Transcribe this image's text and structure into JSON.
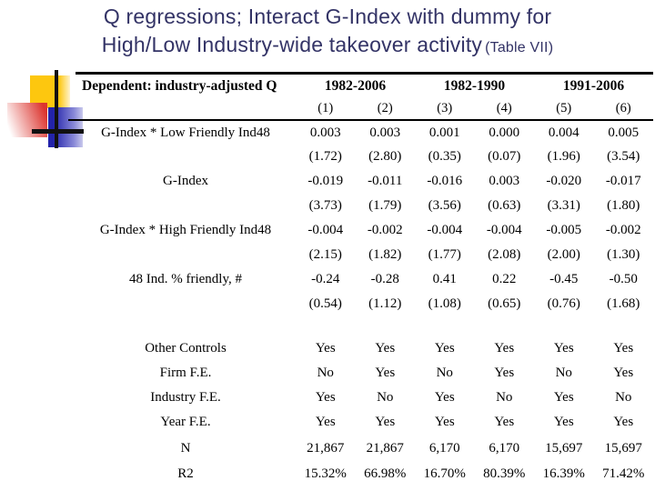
{
  "title": {
    "line1": "Q regressions; Interact G-Index with dummy for",
    "line2": "High/Low Industry-wide takeover activity",
    "suffix": "(Table VII)",
    "color": "#333366"
  },
  "table": {
    "dependent_label": "Dependent: industry-adjusted Q",
    "period_headers": [
      "1982-2006",
      "1982-1990",
      "1991-2006"
    ],
    "column_numbers": [
      "(1)",
      "(2)",
      "(3)",
      "(4)",
      "(5)",
      "(6)"
    ],
    "coef_rows": [
      {
        "label": "G-Index * Low Friendly Ind48",
        "values": [
          "0.003",
          "0.003",
          "0.001",
          "0.000",
          "0.004",
          "0.005"
        ],
        "tstats": [
          "(1.72)",
          "(2.80)",
          "(0.35)",
          "(0.07)",
          "(1.96)",
          "(3.54)"
        ]
      },
      {
        "label": "G-Index",
        "values": [
          "-0.019",
          "-0.011",
          "-0.016",
          "0.003",
          "-0.020",
          "-0.017"
        ],
        "tstats": [
          "(3.73)",
          "(1.79)",
          "(3.56)",
          "(0.63)",
          "(3.31)",
          "(1.80)"
        ]
      },
      {
        "label": "G-Index * High Friendly Ind48",
        "values": [
          "-0.004",
          "-0.002",
          "-0.004",
          "-0.004",
          "-0.005",
          "-0.002"
        ],
        "tstats": [
          "(2.15)",
          "(1.82)",
          "(1.77)",
          "(2.08)",
          "(2.00)",
          "(1.30)"
        ]
      },
      {
        "label": "48 Ind. % friendly, #",
        "values": [
          "-0.24",
          "-0.28",
          "0.41",
          "0.22",
          "-0.45",
          "-0.50"
        ],
        "tstats": [
          "(0.54)",
          "(1.12)",
          "(1.08)",
          "(0.65)",
          "(0.76)",
          "(1.68)"
        ]
      }
    ],
    "summary_rows": [
      {
        "label": "Other Controls",
        "values": [
          "Yes",
          "Yes",
          "Yes",
          "Yes",
          "Yes",
          "Yes"
        ]
      },
      {
        "label": "Firm F.E.",
        "values": [
          "No",
          "Yes",
          "No",
          "Yes",
          "No",
          "Yes"
        ]
      },
      {
        "label": "Industry F.E.",
        "values": [
          "Yes",
          "No",
          "Yes",
          "No",
          "Yes",
          "No"
        ]
      },
      {
        "label": "Year F.E.",
        "values": [
          "Yes",
          "Yes",
          "Yes",
          "Yes",
          "Yes",
          "Yes"
        ]
      },
      {
        "label": "N",
        "values": [
          "21,867",
          "21,867",
          "6,170",
          "6,170",
          "15,697",
          "15,697"
        ]
      },
      {
        "label": "R2",
        "values": [
          "15.32%",
          "66.98%",
          "16.70%",
          "80.39%",
          "16.39%",
          "71.42%"
        ]
      }
    ]
  },
  "decoration": {
    "yellow": "#fdc70f",
    "red": "#dc352f",
    "blue": "#2323aa",
    "line_color": "#111111"
  }
}
